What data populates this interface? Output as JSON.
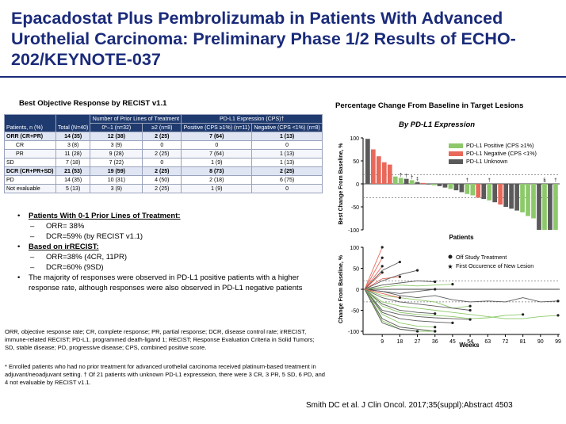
{
  "slide": {
    "title": "Epacadostat Plus Pembrolizumab in Patients With Advanced Urothelial Carcinoma: Preliminary Phase 1/2 Results of ECHO-202/KEYNOTE-037",
    "citation": "Smith DC et al. J Clin Oncol. 2017;35(suppl):Abstract 4503"
  },
  "table": {
    "caption": "Best Objective Response by RECIST v1.1",
    "group_header_lines": "Number of Prior Lines of Treatment",
    "group_header_pdl1": "PD-L1 Expression (CPS)†",
    "col_label": "Patients, n (%)",
    "col_total": "Total (N=40)",
    "col_lines01": "0*–1 (n=32)",
    "col_lines2": "≥2 (n=8)",
    "col_pos": "Positive (CPS ≥1%) (n=11)",
    "col_neg": "Negative (CPS <1%) (n=8)",
    "rows": [
      {
        "label": "ORR (CR+PR)",
        "total": "14 (35)",
        "l01": "12 (38)",
        "l2": "2 (25)",
        "pos": "7 (64)",
        "neg": "1 (13)"
      },
      {
        "label": "CR",
        "total": "3 (8)",
        "l01": "3 (9)",
        "l2": "0",
        "pos": "0",
        "neg": "0"
      },
      {
        "label": "PR",
        "total": "11 (28)",
        "l01": "9 (28)",
        "l2": "2 (25)",
        "pos": "7 (64)",
        "neg": "1 (13)"
      },
      {
        "label": "SD",
        "total": "7 (18)",
        "l01": "7 (22)",
        "l2": "0",
        "pos": "1 (9)",
        "neg": "1 (13)"
      },
      {
        "label": "DCR (CR+PR+SD)",
        "total": "21 (53)",
        "l01": "19 (59)",
        "l2": "2 (25)",
        "pos": "8 (73)",
        "neg": "2 (25)"
      },
      {
        "label": "PD",
        "total": "14 (35)",
        "l01": "10 (31)",
        "l2": "4 (50)",
        "pos": "2 (18)",
        "neg": "6 (75)"
      },
      {
        "label": "Not evaluable",
        "total": "5 (13)",
        "l01": "3 (9)",
        "l2": "2 (25)",
        "pos": "1 (9)",
        "neg": "0"
      }
    ]
  },
  "bullets": {
    "b1": "Patients With 0-1 Prior Lines of Treatment:",
    "b1a": "ORR= 38%",
    "b1b": "DCR=59% (by RECIST v1.1)",
    "b2": "Based on irRECIST:",
    "b2a": "ORR=38% (4CR, 11PR)",
    "b2b": "DCR=60% (9SD)",
    "b3": "The majority of responses were observed in PD-L1 positive patients with a higher response rate, although responses were also observed in PD-L1 negative patients"
  },
  "footnotes": {
    "abbrev": "ORR, objective response rate; CR, complete response; PR, partial response; DCR, disease control rate; irRECIST, immune-related RECIST; PD-L1, programmed death-ligand 1; RECIST; Response Evaluation Criteria in Solid Tumors; SD, stable disease; PD, progressive disease; CPS, combined positive score.",
    "star": "* Enrolled patients who had no prior treatment for advanced urothelial carcinoma received platinum-based treatment in adjuvant/neoadjuvant setting. † Of 21 patients with unknown PD-L1 expresseion, there were 3 CR, 3 PR, 5 SD, 6 PD, and 4 not evaluable by RECIST v1.1."
  },
  "chart_title": "Percentage Change From Baseline in Target Lesions",
  "chart_subtitle": "By PD-L1 Expression",
  "colors": {
    "positive": "#8dc96b",
    "negative": "#e8685a",
    "unknown": "#5a5a5a",
    "title": "#1a2b7a"
  },
  "chart_data": [
    {
      "type": "bar",
      "title": "Percentage Change From Baseline in Target Lesions",
      "subtitle": "By PD-L1 Expression",
      "xlabel": "Patients",
      "ylabel": "Best Change From Baseline, %",
      "ylim": [
        -100,
        100
      ],
      "yticks": [
        -100,
        -50,
        0,
        50,
        100
      ],
      "ytick_labels": [
        "-100",
        "-50",
        "0",
        "50",
        "100"
      ],
      "reference_lines": [
        20,
        -30
      ],
      "legend": [
        "PD-L1 Positive (CPS ≥1%)",
        "PD-L1 Negative (CPS <1%)",
        "PD-L1 Unknown"
      ],
      "legend_position": "top-right",
      "marker_dagger": "†",
      "marker_section": "§",
      "categories": [
        "p1",
        "p2",
        "p3",
        "p4",
        "p5",
        "p6",
        "p7",
        "p8",
        "p9",
        "p10",
        "p11",
        "p12",
        "p13",
        "p14",
        "p15",
        "p16",
        "p17",
        "p18",
        "p19",
        "p20",
        "p21",
        "p22",
        "p23",
        "p24",
        "p25",
        "p26",
        "p27",
        "p28",
        "p29",
        "p30",
        "p31",
        "p32",
        "p33",
        "p34",
        "p35"
      ],
      "values": [
        98,
        75,
        60,
        47,
        42,
        16,
        13,
        11,
        8,
        4,
        2,
        0,
        -3,
        -5,
        -8,
        -11,
        -14,
        -18,
        -22,
        -25,
        -30,
        -33,
        -36,
        -40,
        -45,
        -50,
        -54,
        -58,
        -62,
        -70,
        -75,
        -100,
        -100,
        -100,
        -100
      ],
      "groups": [
        "unknown",
        "negative",
        "negative",
        "negative",
        "negative",
        "positive",
        "positive",
        "unknown",
        "positive",
        "unknown",
        "negative",
        "unknown",
        "positive",
        "unknown",
        "unknown",
        "positive",
        "unknown",
        "unknown",
        "positive",
        "positive",
        "negative",
        "unknown",
        "positive",
        "unknown",
        "negative",
        "unknown",
        "unknown",
        "unknown",
        "positive",
        "positive",
        "positive",
        "unknown",
        "positive",
        "unknown",
        "positive"
      ],
      "markers": [
        "",
        "",
        "",
        "",
        "",
        "",
        "†",
        "†",
        "†",
        "‡",
        "",
        "",
        "",
        "",
        "",
        "",
        "",
        "",
        "†",
        "",
        "",
        "",
        "†",
        "",
        "",
        "",
        "",
        "",
        "",
        "",
        "",
        "",
        "§",
        "",
        "†"
      ]
    },
    {
      "type": "line",
      "xlabel": "Weeks",
      "ylabel": "Change From Baseline, %",
      "ylim": [
        -100,
        100
      ],
      "yticks": [
        -100,
        -50,
        0,
        50,
        100
      ],
      "ytick_labels": [
        "-100",
        "-50",
        "0",
        "50",
        "100"
      ],
      "x": [
        0,
        9,
        18,
        27,
        36,
        45,
        54,
        63,
        72,
        81,
        90,
        99
      ],
      "xtick_labels": [
        "9",
        "18",
        "27",
        "36",
        "45",
        "54",
        "63",
        "72",
        "81",
        "90",
        "99"
      ],
      "reference_lines": [
        20,
        -30
      ],
      "legend": [
        "Off Study Treatment",
        "First Occurence of New Lesion"
      ],
      "legend_position": "top-right",
      "series": [
        {
          "group": "negative",
          "points": [
            [
              0,
              0
            ],
            [
              9,
              100
            ]
          ]
        },
        {
          "group": "negative",
          "points": [
            [
              0,
              0
            ],
            [
              9,
              75
            ]
          ]
        },
        {
          "group": "negative",
          "points": [
            [
              0,
              0
            ],
            [
              9,
              55
            ]
          ]
        },
        {
          "group": "negative",
          "points": [
            [
              0,
              0
            ],
            [
              9,
              40
            ]
          ]
        },
        {
          "group": "negative",
          "points": [
            [
              0,
              0
            ],
            [
              9,
              25
            ],
            [
              18,
              30
            ]
          ]
        },
        {
          "group": "unknown",
          "points": [
            [
              0,
              0
            ],
            [
              9,
              45
            ],
            [
              18,
              65
            ]
          ]
        },
        {
          "group": "unknown",
          "points": [
            [
              0,
              0
            ],
            [
              9,
              20
            ],
            [
              18,
              35
            ],
            [
              27,
              45
            ]
          ]
        },
        {
          "group": "unknown",
          "points": [
            [
              0,
              0
            ],
            [
              9,
              10
            ],
            [
              18,
              15
            ],
            [
              27,
              20
            ],
            [
              36,
              18
            ]
          ]
        },
        {
          "group": "positive",
          "points": [
            [
              0,
              0
            ],
            [
              9,
              5
            ],
            [
              18,
              10
            ],
            [
              27,
              8
            ],
            [
              36,
              10
            ],
            [
              45,
              12
            ]
          ]
        },
        {
          "group": "unknown",
          "points": [
            [
              0,
              0
            ],
            [
              9,
              -5
            ],
            [
              18,
              -10
            ],
            [
              27,
              -5
            ],
            [
              36,
              0
            ]
          ]
        },
        {
          "group": "positive",
          "points": [
            [
              0,
              0
            ],
            [
              9,
              -15
            ],
            [
              18,
              -20
            ],
            [
              27,
              -25
            ],
            [
              36,
              -30
            ],
            [
              45,
              -45
            ],
            [
              54,
              -40
            ]
          ]
        },
        {
          "group": "unknown",
          "points": [
            [
              0,
              0
            ],
            [
              9,
              -20
            ],
            [
              18,
              -30
            ],
            [
              27,
              -35
            ],
            [
              36,
              -40
            ],
            [
              45,
              -45
            ],
            [
              54,
              -50
            ]
          ]
        },
        {
          "group": "positive",
          "points": [
            [
              0,
              0
            ],
            [
              9,
              -30
            ],
            [
              18,
              -40
            ],
            [
              27,
              -45
            ],
            [
              36,
              -50
            ],
            [
              45,
              -55
            ],
            [
              54,
              -60
            ],
            [
              63,
              -65
            ],
            [
              72,
              -70
            ],
            [
              81,
              -70
            ],
            [
              90,
              -65
            ],
            [
              99,
              -62
            ]
          ]
        },
        {
          "group": "unknown",
          "points": [
            [
              0,
              0
            ],
            [
              9,
              -35
            ],
            [
              18,
              -50
            ],
            [
              27,
              -55
            ],
            [
              36,
              -58
            ]
          ]
        },
        {
          "group": "positive",
          "points": [
            [
              0,
              0
            ],
            [
              9,
              -40
            ],
            [
              18,
              -55
            ],
            [
              27,
              -60
            ],
            [
              36,
              -62
            ],
            [
              45,
              -65
            ],
            [
              54,
              -70
            ],
            [
              63,
              -68
            ],
            [
              72,
              -62
            ],
            [
              81,
              -60
            ]
          ]
        },
        {
          "group": "unknown",
          "points": [
            [
              0,
              0
            ],
            [
              9,
              -50
            ],
            [
              18,
              -60
            ],
            [
              27,
              -65
            ],
            [
              36,
              -68
            ],
            [
              45,
              -70
            ],
            [
              54,
              -72
            ]
          ]
        },
        {
          "group": "unknown",
          "points": [
            [
              0,
              0
            ],
            [
              9,
              -55
            ],
            [
              18,
              -70
            ],
            [
              27,
              -75
            ],
            [
              36,
              -78
            ],
            [
              45,
              -80
            ]
          ]
        },
        {
          "group": "positive",
          "points": [
            [
              0,
              0
            ],
            [
              9,
              -60
            ],
            [
              18,
              -80
            ],
            [
              27,
              -88
            ],
            [
              36,
              -90
            ]
          ]
        },
        {
          "group": "unknown",
          "points": [
            [
              0,
              0
            ],
            [
              9,
              -70
            ],
            [
              18,
              -90
            ],
            [
              27,
              -95
            ],
            [
              36,
              -100
            ]
          ]
        },
        {
          "group": "positive",
          "points": [
            [
              0,
              0
            ],
            [
              9,
              -75
            ],
            [
              18,
              -95
            ],
            [
              27,
              -100
            ],
            [
              36,
              -100
            ]
          ]
        },
        {
          "group": "unknown",
          "points": [
            [
              0,
              0
            ],
            [
              9,
              -80
            ],
            [
              18,
              -95
            ],
            [
              27,
              -100
            ]
          ]
        },
        {
          "group": "unknown",
          "points": [
            [
              0,
              0
            ],
            [
              9,
              -5
            ],
            [
              18,
              -15
            ],
            [
              27,
              -20
            ],
            [
              36,
              -15
            ],
            [
              45,
              -25
            ],
            [
              54,
              -30
            ],
            [
              63,
              -28
            ],
            [
              72,
              -30
            ],
            [
              81,
              -20
            ],
            [
              90,
              -30
            ],
            [
              99,
              -28
            ]
          ]
        },
        {
          "group": "negative",
          "points": [
            [
              0,
              0
            ],
            [
              9,
              -10
            ],
            [
              18,
              -20
            ]
          ]
        }
      ]
    }
  ]
}
